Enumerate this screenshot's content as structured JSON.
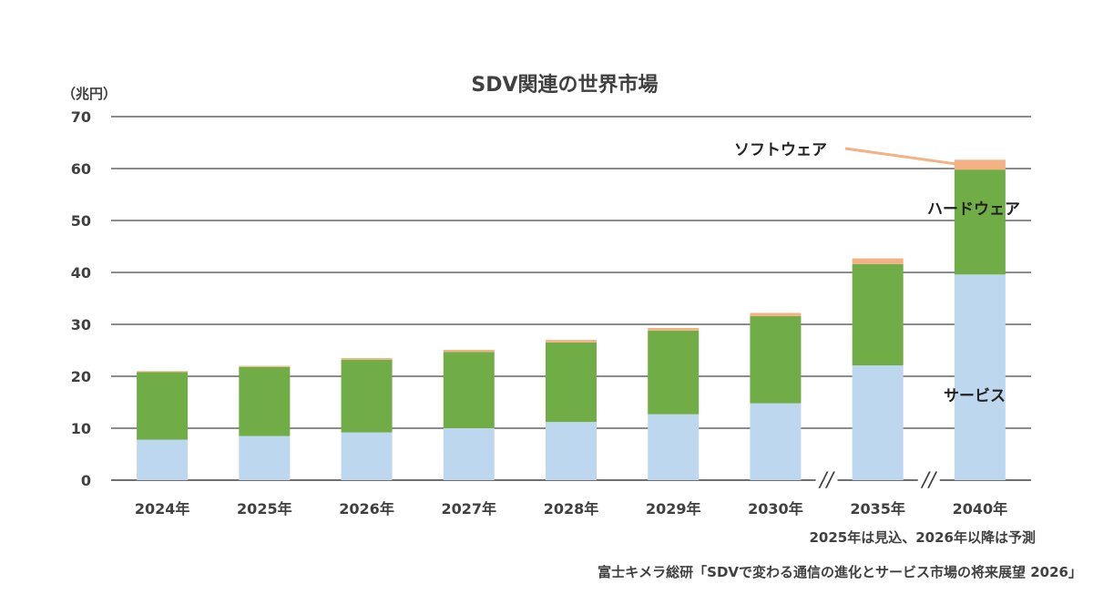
{
  "chart_data": {
    "type": "bar",
    "stacked": true,
    "title": "SDV関連の世界市場",
    "unit": "（兆円）",
    "categories": [
      "2024年",
      "2025年",
      "2026年",
      "2027年",
      "2028年",
      "2029年",
      "2030年",
      "2035年",
      "2040年"
    ],
    "axis_breaks_before": [
      "2035年",
      "2040年"
    ],
    "axis_break_mark": "//",
    "series": [
      {
        "name": "サービス",
        "color": "#BDD7EE",
        "values": [
          7.8,
          8.5,
          9.2,
          10.0,
          11.2,
          12.7,
          14.8,
          22.1,
          39.6
        ]
      },
      {
        "name": "ハードウェア",
        "color": "#70AD47",
        "values": [
          13.0,
          13.3,
          14.0,
          14.7,
          15.3,
          16.1,
          16.8,
          19.5,
          20.2
        ]
      },
      {
        "name": "ソフトウェア",
        "color": "#F4B183",
        "values": [
          0.2,
          0.2,
          0.3,
          0.4,
          0.5,
          0.5,
          0.6,
          1.1,
          1.9
        ]
      }
    ],
    "ylim": [
      0,
      70
    ],
    "yticks": [
      "0",
      "10",
      "20",
      "30",
      "40",
      "50",
      "60",
      "70"
    ],
    "grid": true,
    "legend": "series labels placed next to the 2040年 bar"
  },
  "notes": {
    "forecast": "2025年は見込、2026年以降は予測",
    "source": "富士キメラ総研「SDVで変わる通信の進化とサービス市場の将来展望 2026」"
  }
}
